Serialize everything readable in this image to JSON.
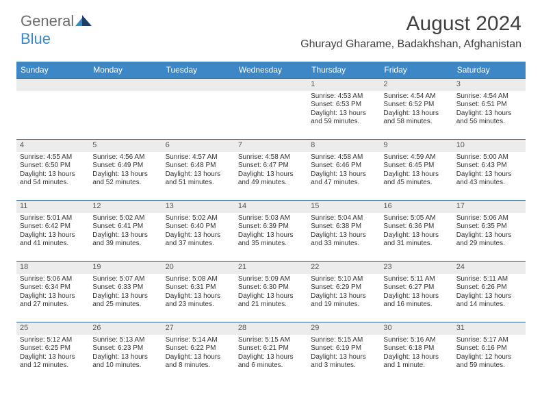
{
  "brand": {
    "part1": "General",
    "part2": "Blue"
  },
  "title": "August 2024",
  "location": "Ghurayd Gharame, Badakhshan, Afghanistan",
  "colors": {
    "header_bg": "#3d87c7",
    "header_text": "#ffffff",
    "row_divider": "#2b5d8a",
    "daynum_bg": "#ececec",
    "body_text": "#333333",
    "title_text": "#404040",
    "logo_gray": "#6b6b6b",
    "logo_blue": "#3d87c7",
    "page_bg": "#ffffff"
  },
  "typography": {
    "month_title_pt": 30,
    "location_pt": 16,
    "weekday_pt": 12,
    "daynum_pt": 11,
    "detail_pt": 10,
    "logo_pt": 22
  },
  "weekdays": [
    "Sunday",
    "Monday",
    "Tuesday",
    "Wednesday",
    "Thursday",
    "Friday",
    "Saturday"
  ],
  "weeks": [
    [
      {
        "blank": true
      },
      {
        "blank": true
      },
      {
        "blank": true
      },
      {
        "blank": true
      },
      {
        "num": "1",
        "sunrise": "Sunrise: 4:53 AM",
        "sunset": "Sunset: 6:53 PM",
        "daylight": "Daylight: 13 hours and 59 minutes."
      },
      {
        "num": "2",
        "sunrise": "Sunrise: 4:54 AM",
        "sunset": "Sunset: 6:52 PM",
        "daylight": "Daylight: 13 hours and 58 minutes."
      },
      {
        "num": "3",
        "sunrise": "Sunrise: 4:54 AM",
        "sunset": "Sunset: 6:51 PM",
        "daylight": "Daylight: 13 hours and 56 minutes."
      }
    ],
    [
      {
        "num": "4",
        "sunrise": "Sunrise: 4:55 AM",
        "sunset": "Sunset: 6:50 PM",
        "daylight": "Daylight: 13 hours and 54 minutes."
      },
      {
        "num": "5",
        "sunrise": "Sunrise: 4:56 AM",
        "sunset": "Sunset: 6:49 PM",
        "daylight": "Daylight: 13 hours and 52 minutes."
      },
      {
        "num": "6",
        "sunrise": "Sunrise: 4:57 AM",
        "sunset": "Sunset: 6:48 PM",
        "daylight": "Daylight: 13 hours and 51 minutes."
      },
      {
        "num": "7",
        "sunrise": "Sunrise: 4:58 AM",
        "sunset": "Sunset: 6:47 PM",
        "daylight": "Daylight: 13 hours and 49 minutes."
      },
      {
        "num": "8",
        "sunrise": "Sunrise: 4:58 AM",
        "sunset": "Sunset: 6:46 PM",
        "daylight": "Daylight: 13 hours and 47 minutes."
      },
      {
        "num": "9",
        "sunrise": "Sunrise: 4:59 AM",
        "sunset": "Sunset: 6:45 PM",
        "daylight": "Daylight: 13 hours and 45 minutes."
      },
      {
        "num": "10",
        "sunrise": "Sunrise: 5:00 AM",
        "sunset": "Sunset: 6:43 PM",
        "daylight": "Daylight: 13 hours and 43 minutes."
      }
    ],
    [
      {
        "num": "11",
        "sunrise": "Sunrise: 5:01 AM",
        "sunset": "Sunset: 6:42 PM",
        "daylight": "Daylight: 13 hours and 41 minutes."
      },
      {
        "num": "12",
        "sunrise": "Sunrise: 5:02 AM",
        "sunset": "Sunset: 6:41 PM",
        "daylight": "Daylight: 13 hours and 39 minutes."
      },
      {
        "num": "13",
        "sunrise": "Sunrise: 5:02 AM",
        "sunset": "Sunset: 6:40 PM",
        "daylight": "Daylight: 13 hours and 37 minutes."
      },
      {
        "num": "14",
        "sunrise": "Sunrise: 5:03 AM",
        "sunset": "Sunset: 6:39 PM",
        "daylight": "Daylight: 13 hours and 35 minutes."
      },
      {
        "num": "15",
        "sunrise": "Sunrise: 5:04 AM",
        "sunset": "Sunset: 6:38 PM",
        "daylight": "Daylight: 13 hours and 33 minutes."
      },
      {
        "num": "16",
        "sunrise": "Sunrise: 5:05 AM",
        "sunset": "Sunset: 6:36 PM",
        "daylight": "Daylight: 13 hours and 31 minutes."
      },
      {
        "num": "17",
        "sunrise": "Sunrise: 5:06 AM",
        "sunset": "Sunset: 6:35 PM",
        "daylight": "Daylight: 13 hours and 29 minutes."
      }
    ],
    [
      {
        "num": "18",
        "sunrise": "Sunrise: 5:06 AM",
        "sunset": "Sunset: 6:34 PM",
        "daylight": "Daylight: 13 hours and 27 minutes."
      },
      {
        "num": "19",
        "sunrise": "Sunrise: 5:07 AM",
        "sunset": "Sunset: 6:33 PM",
        "daylight": "Daylight: 13 hours and 25 minutes."
      },
      {
        "num": "20",
        "sunrise": "Sunrise: 5:08 AM",
        "sunset": "Sunset: 6:31 PM",
        "daylight": "Daylight: 13 hours and 23 minutes."
      },
      {
        "num": "21",
        "sunrise": "Sunrise: 5:09 AM",
        "sunset": "Sunset: 6:30 PM",
        "daylight": "Daylight: 13 hours and 21 minutes."
      },
      {
        "num": "22",
        "sunrise": "Sunrise: 5:10 AM",
        "sunset": "Sunset: 6:29 PM",
        "daylight": "Daylight: 13 hours and 19 minutes."
      },
      {
        "num": "23",
        "sunrise": "Sunrise: 5:11 AM",
        "sunset": "Sunset: 6:27 PM",
        "daylight": "Daylight: 13 hours and 16 minutes."
      },
      {
        "num": "24",
        "sunrise": "Sunrise: 5:11 AM",
        "sunset": "Sunset: 6:26 PM",
        "daylight": "Daylight: 13 hours and 14 minutes."
      }
    ],
    [
      {
        "num": "25",
        "sunrise": "Sunrise: 5:12 AM",
        "sunset": "Sunset: 6:25 PM",
        "daylight": "Daylight: 13 hours and 12 minutes."
      },
      {
        "num": "26",
        "sunrise": "Sunrise: 5:13 AM",
        "sunset": "Sunset: 6:23 PM",
        "daylight": "Daylight: 13 hours and 10 minutes."
      },
      {
        "num": "27",
        "sunrise": "Sunrise: 5:14 AM",
        "sunset": "Sunset: 6:22 PM",
        "daylight": "Daylight: 13 hours and 8 minutes."
      },
      {
        "num": "28",
        "sunrise": "Sunrise: 5:15 AM",
        "sunset": "Sunset: 6:21 PM",
        "daylight": "Daylight: 13 hours and 6 minutes."
      },
      {
        "num": "29",
        "sunrise": "Sunrise: 5:15 AM",
        "sunset": "Sunset: 6:19 PM",
        "daylight": "Daylight: 13 hours and 3 minutes."
      },
      {
        "num": "30",
        "sunrise": "Sunrise: 5:16 AM",
        "sunset": "Sunset: 6:18 PM",
        "daylight": "Daylight: 13 hours and 1 minute."
      },
      {
        "num": "31",
        "sunrise": "Sunrise: 5:17 AM",
        "sunset": "Sunset: 6:16 PM",
        "daylight": "Daylight: 12 hours and 59 minutes."
      }
    ]
  ]
}
